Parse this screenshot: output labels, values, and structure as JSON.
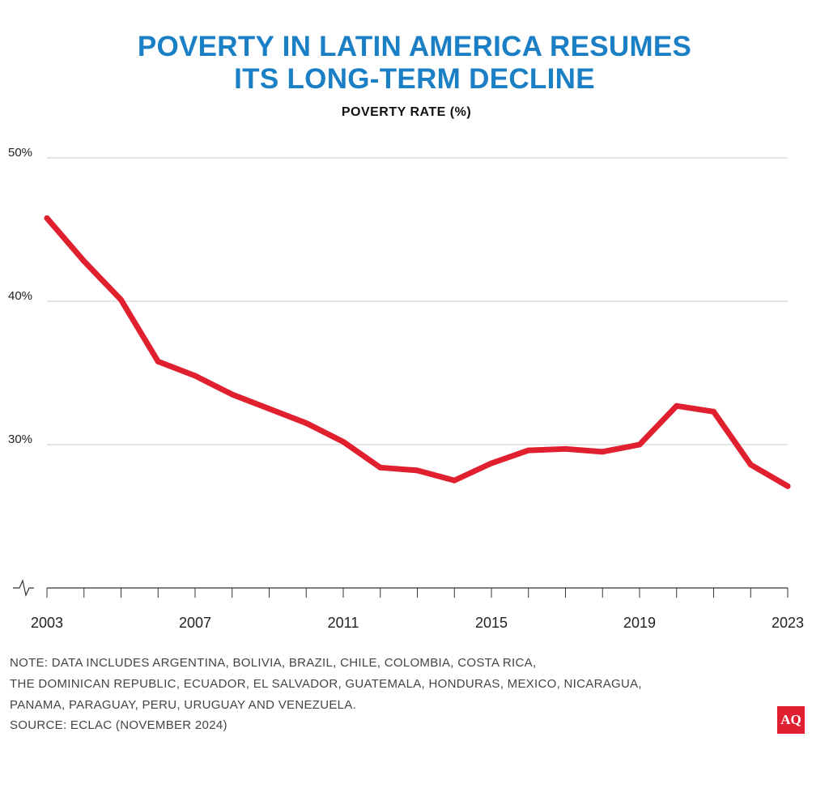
{
  "title_lines": [
    "POVERTY IN LATIN AMERICA RESUMES",
    "ITS LONG-TERM DECLINE"
  ],
  "subtitle": "POVERTY RATE (%)",
  "note_lines": [
    "NOTE: DATA INCLUDES ARGENTINA, BOLIVIA, BRAZIL, CHILE, COLOMBIA, COSTA RICA,",
    "THE DOMINICAN REPUBLIC, ECUADOR, EL SALVADOR, GUATEMALA, HONDURAS, MEXICO, NICARAGUA,",
    "PANAMA, PARAGUAY, PERU, URUGUAY AND VENEZUELA."
  ],
  "source": "SOURCE: ECLAC (NOVEMBER 2024)",
  "logo_text": "AQ",
  "colors": {
    "title": "#1a7fc4",
    "line": "#e0202f",
    "grid": "#c8c8c8",
    "logo_bg": "#e02030"
  },
  "chart_data": {
    "type": "line",
    "title": "POVERTY IN LATIN AMERICA RESUMES ITS LONG-TERM DECLINE",
    "ylabel": "POVERTY RATE (%)",
    "xlim": [
      2003,
      2023
    ],
    "ylim": [
      20,
      50
    ],
    "y_axis_break": true,
    "y_ticks": [
      30,
      40,
      50
    ],
    "y_tick_labels": [
      "30%",
      "40%",
      "50%"
    ],
    "x_ticks": [
      2003,
      2007,
      2011,
      2015,
      2019,
      2023
    ],
    "x_tick_labels": [
      "2003",
      "2007",
      "2011",
      "2015",
      "2019",
      "2023"
    ],
    "grid": true,
    "series": [
      {
        "x": [
          2003,
          2004,
          2005,
          2006,
          2007,
          2008,
          2009,
          2010,
          2011,
          2012,
          2013,
          2014,
          2015,
          2016,
          2017,
          2018,
          2019,
          2020,
          2021,
          2022,
          2023
        ],
        "values": [
          45.8,
          42.8,
          40.1,
          35.8,
          34.8,
          33.5,
          32.5,
          31.5,
          30.2,
          28.4,
          28.2,
          27.5,
          28.7,
          29.6,
          29.7,
          29.5,
          30.0,
          32.7,
          32.3,
          28.6,
          27.1
        ]
      }
    ]
  }
}
